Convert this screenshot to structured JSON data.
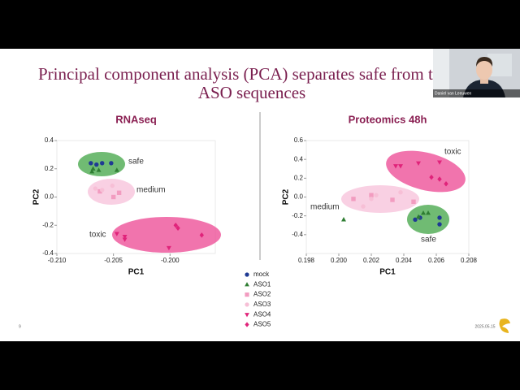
{
  "slide": {
    "title_lines": [
      "Principal component analysis (PCA) separates safe from toxic",
      "ASO sequences"
    ],
    "page_number": "9",
    "date": "2025.05.15",
    "speaker": "Daniel van Leeuwen"
  },
  "chart_data": [
    {
      "type": "scatter",
      "title": "RNAseq",
      "xlabel": "PC1",
      "ylabel": "PC2",
      "xlim": [
        -0.21,
        -0.196
      ],
      "ylim": [
        -0.4,
        0.4
      ],
      "xticks": [
        {
          "value": -0.21,
          "label": "-0.210"
        },
        -0.205,
        {
          "value": -0.2,
          "label": "-0.200"
        }
      ],
      "yticks": [
        0.4,
        0.2,
        {
          "value": 0,
          "label": "0.0"
        },
        -0.2,
        -0.4
      ],
      "series": [
        {
          "name": "mock",
          "color": "#1f3a93",
          "marker": "circle",
          "x": [
            -0.207,
            -0.2065,
            -0.206,
            -0.2052
          ],
          "y": [
            0.24,
            0.23,
            0.24,
            0.24
          ]
        },
        {
          "name": "ASO1",
          "color": "#2e7d32",
          "marker": "triangle-up",
          "x": [
            -0.2069,
            -0.2063,
            -0.2047,
            -0.2068
          ],
          "y": [
            0.18,
            0.19,
            0.19,
            0.2
          ]
        },
        {
          "name": "ASO2",
          "color": "#f29cc0",
          "marker": "square",
          "x": [
            -0.205,
            -0.2045,
            -0.2062
          ],
          "y": [
            0.0,
            0.03,
            0.04
          ]
        },
        {
          "name": "ASO3",
          "color": "#f7bfd6",
          "marker": "circle",
          "x": [
            -0.2066,
            -0.206,
            -0.2051
          ],
          "y": [
            0.06,
            0.05,
            0.08
          ]
        },
        {
          "name": "ASO4",
          "color": "#e0237a",
          "marker": "triangle-down",
          "x": [
            -0.2047,
            -0.204,
            -0.204,
            -0.2001
          ],
          "y": [
            -0.26,
            -0.28,
            -0.3,
            -0.36
          ]
        },
        {
          "name": "ASO5",
          "color": "#e0237a",
          "marker": "diamond",
          "x": [
            -0.1995,
            -0.1993,
            -0.1972
          ],
          "y": [
            -0.2,
            -0.22,
            -0.27
          ]
        }
      ],
      "annotations": [
        "safe",
        "medium",
        "toxic"
      ]
    },
    {
      "type": "scatter",
      "title": "Proteomics 48h",
      "xlabel": "PC1",
      "ylabel": "PC2",
      "xlim": [
        0.198,
        0.208
      ],
      "ylim": [
        -0.6,
        0.6
      ],
      "xticks": [
        0.198,
        {
          "value": 0.2,
          "label": "0.200"
        },
        0.202,
        0.204,
        0.206,
        0.208
      ],
      "yticks": [
        0.6,
        0.4,
        0.2,
        {
          "value": 0,
          "label": "0.0"
        },
        -0.2,
        -0.4
      ],
      "series": [
        {
          "name": "mock",
          "color": "#1f3a93",
          "marker": "circle",
          "x": [
            0.2047,
            0.205,
            0.2062,
            0.2062
          ],
          "y": [
            -0.24,
            -0.22,
            -0.22,
            -0.29
          ]
        },
        {
          "name": "ASO1",
          "color": "#2e7d32",
          "marker": "triangle-up",
          "x": [
            0.2003,
            0.2052,
            0.2055,
            0.2049
          ],
          "y": [
            -0.24,
            -0.17,
            -0.17,
            -0.21
          ]
        },
        {
          "name": "ASO2",
          "color": "#f29cc0",
          "marker": "square",
          "x": [
            0.2009,
            0.2033,
            0.2046,
            0.202
          ],
          "y": [
            -0.02,
            -0.03,
            -0.05,
            0.02
          ]
        },
        {
          "name": "ASO3",
          "color": "#f7bfd6",
          "marker": "circle",
          "x": [
            0.2015,
            0.202,
            0.2023,
            0.2038
          ],
          "y": [
            -0.1,
            -0.02,
            0.02,
            0.05
          ]
        },
        {
          "name": "ASO4",
          "color": "#e0237a",
          "marker": "triangle-down",
          "x": [
            0.2035,
            0.2038,
            0.2049,
            0.2062
          ],
          "y": [
            0.33,
            0.33,
            0.36,
            0.37
          ]
        },
        {
          "name": "ASO5",
          "color": "#e0237a",
          "marker": "diamond",
          "x": [
            0.2057,
            0.2062,
            0.2066
          ],
          "y": [
            0.21,
            0.19,
            0.14
          ]
        }
      ],
      "annotations": [
        "toxic",
        "medium",
        "safe"
      ]
    }
  ]
}
